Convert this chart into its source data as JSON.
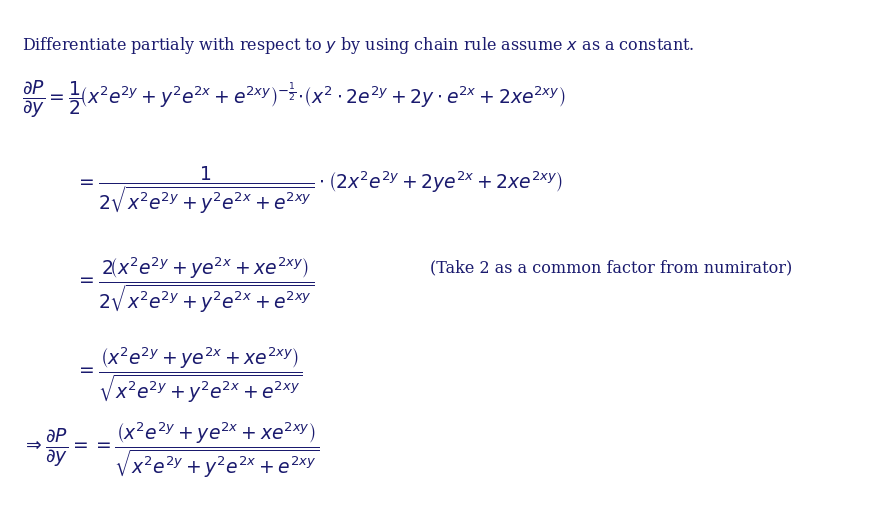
{
  "background_color": "#ffffff",
  "text_color": "#1a1a6e",
  "fig_width": 8.83,
  "fig_height": 5.29,
  "dpi": 100,
  "fontsize_intro": 11.5,
  "fontsize_math": 13.5,
  "fontsize_note": 11.5,
  "intro_text": "Differentiate partialy with respect to $y$ by using chain rule assume $x$ as a constant.",
  "line3_note": "(Take 2 as a common factor from numirator)"
}
